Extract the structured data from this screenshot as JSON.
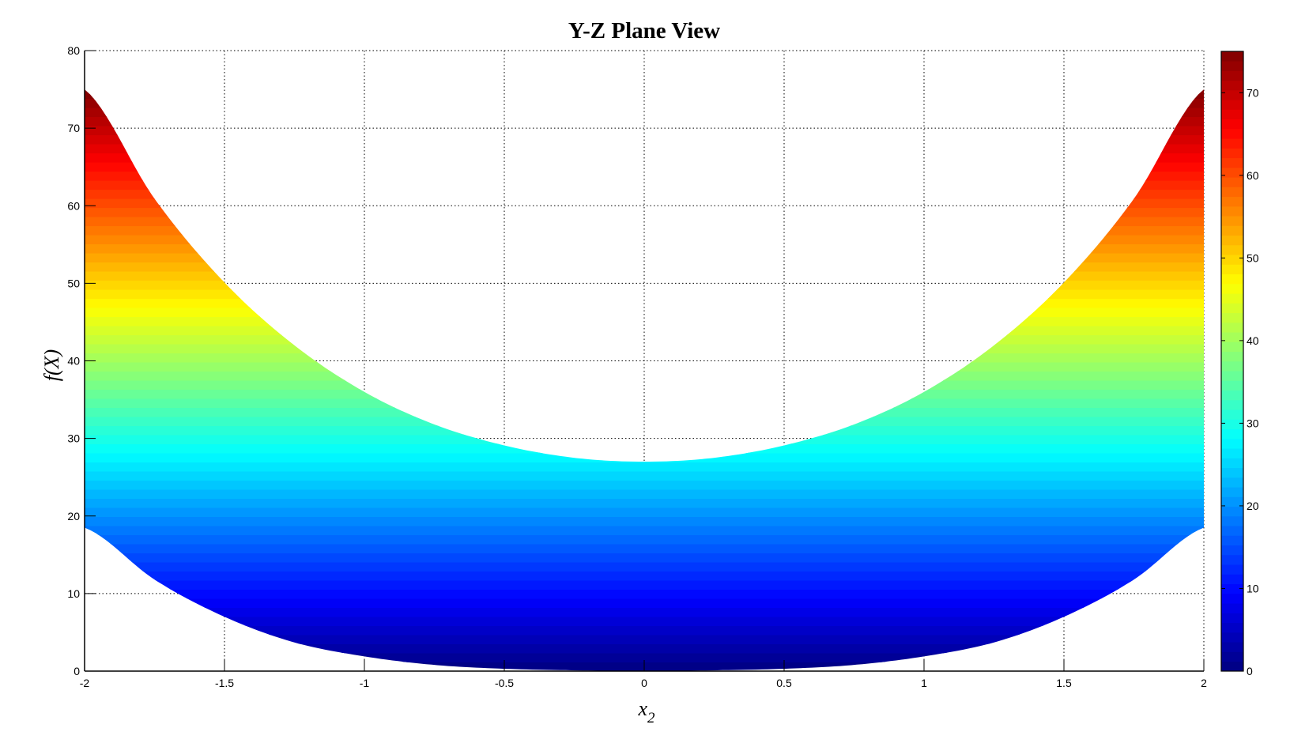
{
  "chart_data": {
    "type": "area",
    "title": "Y-Z Plane View",
    "xlabel": "x",
    "xlabel_subscript": "2",
    "ylabel": "f(X)",
    "xlim": [
      -2,
      2
    ],
    "ylim": [
      0,
      80
    ],
    "xticks": [
      "-2",
      "-1.5",
      "-1",
      "-0.5",
      "0",
      "0.5",
      "1",
      "1.5",
      "2"
    ],
    "yticks": [
      "0",
      "10",
      "20",
      "30",
      "40",
      "50",
      "60",
      "70",
      "80"
    ],
    "grid": true,
    "colormap": "jet",
    "clim": [
      0,
      75
    ],
    "colorbar_ticks": [
      "0",
      "10",
      "20",
      "30",
      "40",
      "50",
      "60",
      "70"
    ],
    "x": [
      -2,
      -1.75,
      -1.5,
      -1.25,
      -1,
      -0.75,
      -0.5,
      -0.25,
      0,
      0.25,
      0.5,
      0.75,
      1,
      1.25,
      1.5,
      1.75,
      2
    ],
    "upper": [
      75,
      60.9,
      50.1,
      42.0,
      36.0,
      31.8,
      29.1,
      27.5,
      27,
      27.5,
      29.1,
      31.8,
      36.0,
      42.0,
      50.1,
      60.9,
      75
    ],
    "lower": [
      18.5,
      11.8,
      7.0,
      3.7,
      1.9,
      0.8,
      0.3,
      0.1,
      0,
      0.1,
      0.3,
      0.8,
      1.9,
      3.7,
      7.0,
      11.8,
      18.5
    ]
  }
}
